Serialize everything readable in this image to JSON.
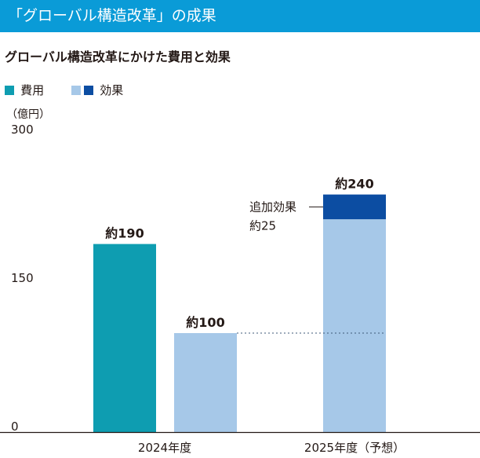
{
  "header": {
    "title": "「グローバル構造改革」の成果",
    "bar_color": "#0a9bd7"
  },
  "subtitle": "グローバル構造改革にかけた費用と効果",
  "legend": {
    "items": [
      {
        "label": "費用",
        "colors": [
          "#0e9db1"
        ]
      },
      {
        "label": "効果",
        "colors": [
          "#a6c8e8",
          "#0c4da2"
        ]
      }
    ]
  },
  "unit_label": "（億円）",
  "colors": {
    "cost": "#0e9db1",
    "effect": "#a6c8e8",
    "effect_additional": "#0c4da2",
    "axis": "#231815",
    "reference_line": "#3e5a78"
  },
  "chart_data": {
    "type": "bar",
    "stacked": true,
    "categories": [
      "2024年度",
      "2025年度（予想）"
    ],
    "ylim": [
      0,
      300
    ],
    "yticks": [
      "300",
      "150",
      "0"
    ],
    "ytick_values": [
      300,
      150,
      0
    ],
    "grid": false,
    "legend_position": "top-left",
    "bars": [
      {
        "category": "2024年度",
        "series": "費用",
        "value": 190,
        "label": "約190",
        "color": "#0e9db1"
      },
      {
        "category": "2024年度",
        "series": "効果",
        "value": 100,
        "label": "約100",
        "color": "#a6c8e8"
      },
      {
        "category": "2025年度（予想）",
        "series": "効果",
        "segments": [
          {
            "value": 215,
            "color": "#a6c8e8"
          },
          {
            "value": 25,
            "color": "#0c4da2"
          }
        ],
        "value": 240,
        "label": "約240"
      }
    ],
    "annotations": [
      {
        "text_lines": [
          "追加効果",
          "約25"
        ],
        "target": "2025年度（予想）",
        "value": 25
      },
      {
        "type": "reference_line",
        "value": 100,
        "style": "dotted"
      }
    ]
  }
}
